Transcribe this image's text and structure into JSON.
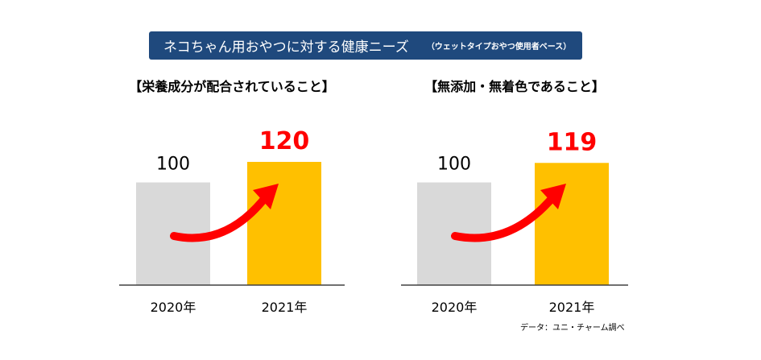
{
  "title": "ネコちゃん用おやつに対する健康ニーズ",
  "title_note": "（ウェットタイプおやつ使用者ベース）",
  "source": "データ：ユニ・チャーム調べ",
  "colors": {
    "banner": "#1f497d",
    "bar_2020": "#d9d9d9",
    "bar_2021": "#ffc000",
    "highlight": "#ff0000",
    "arrow": "#ff0000"
  },
  "chart_data": [
    {
      "type": "bar",
      "title": "【栄養成分が配合されていること】",
      "categories": [
        "2020年",
        "2021年"
      ],
      "values": [
        100,
        120
      ],
      "value_labels": [
        "100",
        "120"
      ],
      "annotation": "increase-arrow"
    },
    {
      "type": "bar",
      "title": "【無添加・無着色であること】",
      "categories": [
        "2020年",
        "2021年"
      ],
      "values": [
        100,
        119
      ],
      "value_labels": [
        "100",
        "119"
      ],
      "annotation": "increase-arrow"
    }
  ]
}
